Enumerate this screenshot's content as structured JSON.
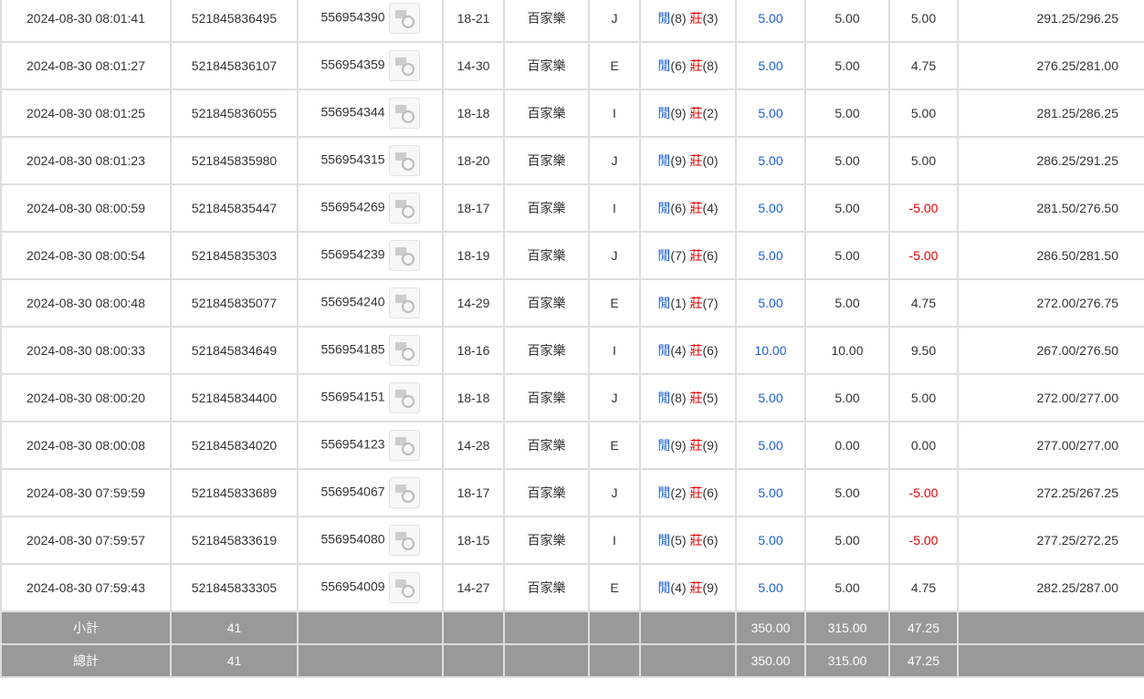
{
  "colors": {
    "player": "#1a5fd6",
    "banker": "#e00000",
    "bet": "#1a5fd6",
    "negative": "#e00000",
    "summary_bg": "#999999"
  },
  "rows": [
    [
      "2024-08-30 08:01:41",
      "521845836495",
      "556954390",
      "18-21",
      "百家樂",
      "J",
      "8",
      "3",
      "5.00",
      "5.00",
      "5.00",
      "291.25/296.25"
    ],
    [
      "2024-08-30 08:01:27",
      "521845836107",
      "556954359",
      "14-30",
      "百家樂",
      "E",
      "6",
      "8",
      "5.00",
      "5.00",
      "4.75",
      "276.25/281.00"
    ],
    [
      "2024-08-30 08:01:25",
      "521845836055",
      "556954344",
      "18-18",
      "百家樂",
      "I",
      "9",
      "2",
      "5.00",
      "5.00",
      "5.00",
      "281.25/286.25"
    ],
    [
      "2024-08-30 08:01:23",
      "521845835980",
      "556954315",
      "18-20",
      "百家樂",
      "J",
      "9",
      "0",
      "5.00",
      "5.00",
      "5.00",
      "286.25/291.25"
    ],
    [
      "2024-08-30 08:00:59",
      "521845835447",
      "556954269",
      "18-17",
      "百家樂",
      "I",
      "6",
      "4",
      "5.00",
      "5.00",
      "-5.00",
      "281.50/276.50"
    ],
    [
      "2024-08-30 08:00:54",
      "521845835303",
      "556954239",
      "18-19",
      "百家樂",
      "J",
      "7",
      "6",
      "5.00",
      "5.00",
      "-5.00",
      "286.50/281.50"
    ],
    [
      "2024-08-30 08:00:48",
      "521845835077",
      "556954240",
      "14-29",
      "百家樂",
      "E",
      "1",
      "7",
      "5.00",
      "5.00",
      "4.75",
      "272.00/276.75"
    ],
    [
      "2024-08-30 08:00:33",
      "521845834649",
      "556954185",
      "18-16",
      "百家樂",
      "I",
      "4",
      "6",
      "10.00",
      "10.00",
      "9.50",
      "267.00/276.50"
    ],
    [
      "2024-08-30 08:00:20",
      "521845834400",
      "556954151",
      "18-18",
      "百家樂",
      "J",
      "8",
      "5",
      "5.00",
      "5.00",
      "5.00",
      "272.00/277.00"
    ],
    [
      "2024-08-30 08:00:08",
      "521845834020",
      "556954123",
      "14-28",
      "百家樂",
      "E",
      "9",
      "9",
      "5.00",
      "0.00",
      "0.00",
      "277.00/277.00"
    ],
    [
      "2024-08-30 07:59:59",
      "521845833689",
      "556954067",
      "18-17",
      "百家樂",
      "J",
      "2",
      "6",
      "5.00",
      "5.00",
      "-5.00",
      "272.25/267.25"
    ],
    [
      "2024-08-30 07:59:57",
      "521845833619",
      "556954080",
      "18-15",
      "百家樂",
      "I",
      "5",
      "6",
      "5.00",
      "5.00",
      "-5.00",
      "277.25/272.25"
    ],
    [
      "2024-08-30 07:59:43",
      "521845833305",
      "556954009",
      "14-27",
      "百家樂",
      "E",
      "4",
      "9",
      "5.00",
      "5.00",
      "4.75",
      "282.25/287.00"
    ]
  ],
  "result_labels": {
    "player": "閒",
    "banker": "莊"
  },
  "subtotal": {
    "label": "小計",
    "count": "41",
    "bet": "350.00",
    "valid": "315.00",
    "win": "47.25"
  },
  "total": {
    "label": "總計",
    "count": "41",
    "bet": "350.00",
    "valid": "315.00",
    "win": "47.25"
  }
}
